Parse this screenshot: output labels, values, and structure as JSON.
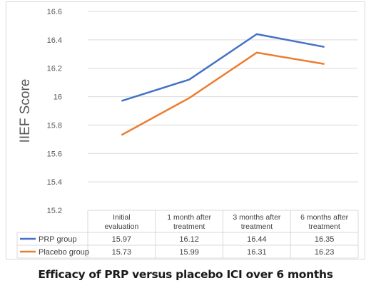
{
  "caption": "Efficacy of PRP versus placebo ICI over 6 months",
  "chart_data": {
    "type": "line",
    "ylabel": "IIEF Score",
    "xlabel": "",
    "ylim": [
      15.2,
      16.6
    ],
    "yticks": [
      15.2,
      15.4,
      15.6,
      15.8,
      16,
      16.2,
      16.4,
      16.6
    ],
    "ytick_labels": [
      "15.2",
      "15.4",
      "15.6",
      "15.8",
      "16",
      "16.2",
      "16.4",
      "16.6"
    ],
    "grid": true,
    "legend": "data-table",
    "categories": [
      [
        "Initial",
        "evaluation"
      ],
      [
        "1 month after",
        "treatment"
      ],
      [
        "3 months after",
        "treatment"
      ],
      [
        "6 months after",
        "treatment"
      ]
    ],
    "series": [
      {
        "name": "PRP group",
        "color": "#4472c4",
        "values": [
          15.97,
          16.12,
          16.44,
          16.35
        ],
        "labels": [
          "15.97",
          "16.12",
          "16.44",
          "16.35"
        ]
      },
      {
        "name": "Placebo group",
        "color": "#ed7d31",
        "values": [
          15.73,
          15.99,
          16.31,
          16.23
        ],
        "labels": [
          "15.73",
          "15.99",
          "16.31",
          "16.23"
        ]
      }
    ]
  }
}
